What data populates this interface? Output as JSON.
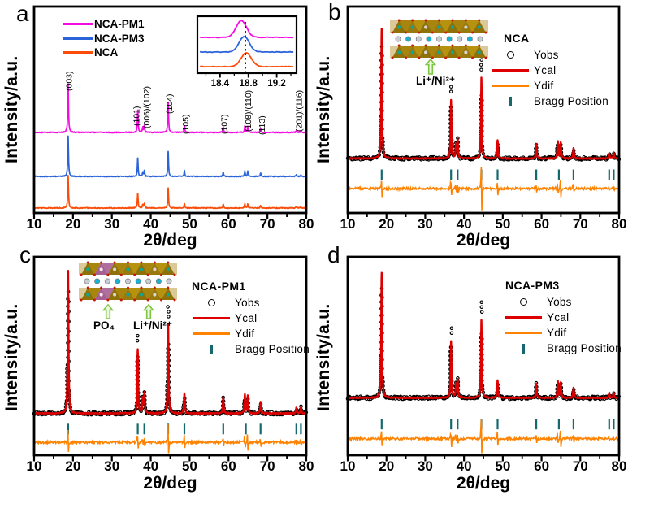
{
  "colors": {
    "magenta": "#F50CE0",
    "blue": "#2B63D9",
    "orange_red": "#FB4D09",
    "red": "#DE0000",
    "orange": "#FF8200",
    "teal": "#15696E",
    "black": "#000000",
    "arrow_green": "#7CC63F"
  },
  "axis": {
    "xlabel": "2θ/deg",
    "ylabel": "Intensity/a.u.",
    "xticks": [
      "10",
      "20",
      "30",
      "40",
      "50",
      "60",
      "70",
      "80"
    ],
    "xrange": [
      10,
      80
    ]
  },
  "panels": {
    "a": {
      "letter": "a",
      "legend": [
        {
          "label": "NCA-PM1",
          "color_key": "magenta"
        },
        {
          "label": "NCA-PM3",
          "color_key": "blue"
        },
        {
          "label": "NCA",
          "color_key": "orange_red"
        }
      ]
    },
    "b": {
      "letter": "b",
      "title": "NCA",
      "crystal_label_li": "Li⁺/Ni²⁺"
    },
    "c": {
      "letter": "c",
      "title": "NCA-PM1",
      "crystal_label_po4": "PO₄",
      "crystal_label_li": "Li⁺/Ni²⁺"
    },
    "d": {
      "letter": "d",
      "title": "NCA-PM3"
    }
  },
  "rietveld_legend": {
    "yobs": "Yobs",
    "ycal": "Ycal",
    "ydif": "Ydif",
    "bragg": "Bragg Position"
  },
  "chart_data": [
    {
      "panel": "a",
      "type": "line",
      "title": "XRD patterns of NCA, NCA-PM1, NCA-PM3",
      "xlabel": "2θ/deg",
      "ylabel": "Intensity/a.u.",
      "xlim": [
        10,
        80
      ],
      "xticks": [
        10,
        20,
        30,
        40,
        50,
        60,
        70,
        80
      ],
      "series": [
        {
          "name": "NCA-PM1",
          "color_key": "magenta"
        },
        {
          "name": "NCA-PM3",
          "color_key": "blue"
        },
        {
          "name": "NCA",
          "color_key": "orange_red"
        }
      ],
      "peaks": [
        {
          "hkl": "(003)",
          "two_theta": 18.75,
          "rel_intensity": 1.0
        },
        {
          "hkl": "(101)",
          "two_theta": 36.66,
          "rel_intensity": 0.45
        },
        {
          "hkl": "(006)",
          "two_theta": 37.95,
          "rel_intensity": 0.1
        },
        {
          "hkl": "(102)",
          "two_theta": 38.36,
          "rel_intensity": 0.14
        },
        {
          "hkl": "(104)",
          "two_theta": 44.48,
          "rel_intensity": 0.62
        },
        {
          "hkl": "(105)",
          "two_theta": 48.66,
          "rel_intensity": 0.14
        },
        {
          "hkl": "(107)",
          "two_theta": 58.64,
          "rel_intensity": 0.11
        },
        {
          "hkl": "(108)",
          "two_theta": 64.2,
          "rel_intensity": 0.13
        },
        {
          "hkl": "(110)",
          "two_theta": 64.95,
          "rel_intensity": 0.12
        },
        {
          "hkl": "(113)",
          "two_theta": 68.24,
          "rel_intensity": 0.08
        },
        {
          "hkl": "(201)",
          "two_theta": 77.45,
          "rel_intensity": 0.04
        },
        {
          "hkl": "(116)",
          "two_theta": 78.62,
          "rel_intensity": 0.04
        }
      ],
      "peak_labels": [
        {
          "text": "(003)",
          "x": 19.0
        },
        {
          "text": "(101)",
          "x": 36.3
        },
        {
          "text": "(006)/(102)",
          "x": 38.9
        },
        {
          "text": "(104)",
          "x": 44.8
        },
        {
          "text": "(105)",
          "x": 49.0
        },
        {
          "text": "(107)",
          "x": 58.9
        },
        {
          "text": "(108)/(110)",
          "x": 65.1
        },
        {
          "text": "(113)",
          "x": 68.6
        },
        {
          "text": "(201)/(116)",
          "x": 78.1
        }
      ],
      "inset": {
        "xlim": [
          18.08,
          19.48
        ],
        "xticks": [
          18.4,
          18.8,
          19.2
        ],
        "dashed_line_x": 18.76,
        "series": [
          {
            "name": "NCA-PM1",
            "peak_center": 18.7
          },
          {
            "name": "NCA-PM3",
            "peak_center": 18.74
          },
          {
            "name": "NCA",
            "peak_center": 18.77
          }
        ]
      }
    },
    {
      "panel": "b",
      "type": "rietveld",
      "sample": "NCA",
      "series": [
        {
          "name": "Yobs",
          "style": "open-circles",
          "color_key": "black"
        },
        {
          "name": "Ycal",
          "style": "line",
          "color_key": "red"
        },
        {
          "name": "Ydif",
          "style": "line",
          "color_key": "orange"
        },
        {
          "name": "Bragg Position",
          "style": "ticks",
          "color_key": "teal"
        }
      ],
      "xlim": [
        10,
        80
      ],
      "xticks": [
        10,
        20,
        30,
        40,
        50,
        60,
        70,
        80
      ],
      "bragg_positions": [
        18.75,
        36.66,
        38.36,
        44.48,
        48.66,
        58.64,
        64.46,
        68.24,
        77.45,
        78.62
      ]
    },
    {
      "panel": "c",
      "type": "rietveld",
      "sample": "NCA-PM1",
      "series": [
        {
          "name": "Yobs",
          "style": "open-circles",
          "color_key": "black"
        },
        {
          "name": "Ycal",
          "style": "line",
          "color_key": "red"
        },
        {
          "name": "Ydif",
          "style": "line",
          "color_key": "orange"
        },
        {
          "name": "Bragg Position",
          "style": "ticks",
          "color_key": "teal"
        }
      ],
      "xlim": [
        10,
        80
      ],
      "xticks": [
        10,
        20,
        30,
        40,
        50,
        60,
        70,
        80
      ],
      "bragg_positions": [
        18.75,
        36.66,
        38.36,
        44.48,
        48.66,
        58.64,
        64.46,
        68.24,
        77.45,
        78.62
      ]
    },
    {
      "panel": "d",
      "type": "rietveld",
      "sample": "NCA-PM3",
      "series": [
        {
          "name": "Yobs",
          "style": "open-circles",
          "color_key": "black"
        },
        {
          "name": "Ycal",
          "style": "line",
          "color_key": "red"
        },
        {
          "name": "Ydif",
          "style": "line",
          "color_key": "orange"
        },
        {
          "name": "Bragg Position",
          "style": "ticks",
          "color_key": "teal"
        }
      ],
      "xlim": [
        10,
        80
      ],
      "xticks": [
        10,
        20,
        30,
        40,
        50,
        60,
        70,
        80
      ],
      "bragg_positions": [
        18.75,
        36.66,
        38.36,
        44.48,
        48.66,
        58.64,
        64.46,
        68.24,
        77.45,
        78.62
      ]
    }
  ]
}
